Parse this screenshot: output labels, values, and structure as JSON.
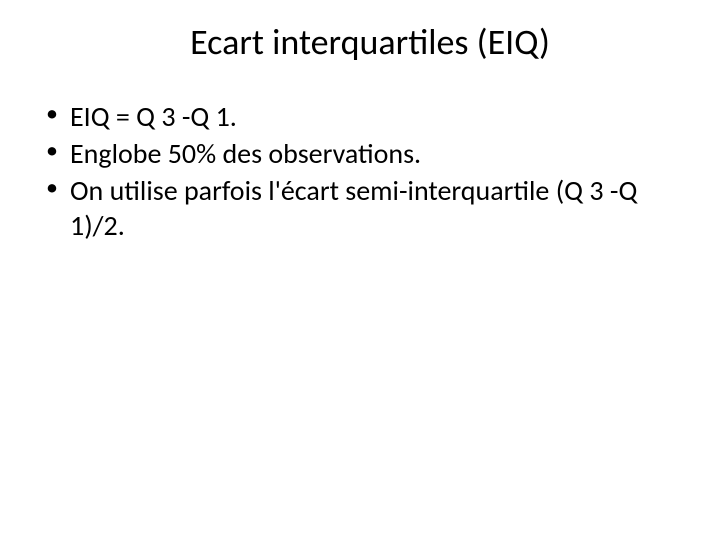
{
  "slide": {
    "title": "Ecart interquartiles (EIQ)",
    "title_fontsize": 36,
    "title_color": "#000000",
    "body_fontsize": 28,
    "body_color": "#000000",
    "background_color": "#ffffff",
    "bullets": [
      "EIQ = Q 3 -Q 1.",
      "Englobe 50% des observations.",
      "On utilise parfois l'écart semi-interquartile (Q 3 -Q 1)/2."
    ]
  }
}
